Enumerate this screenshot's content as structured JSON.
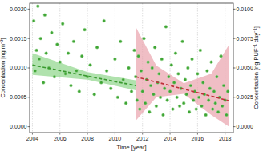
{
  "chart_data": {
    "type": "scatter",
    "xlabel": "Time [year]",
    "ylabel": "Concentration [ng m⁻³]",
    "y2label": "Concentration [ng PUF⁻¹ day⁻¹]",
    "xlim": [
      2003.8,
      2018.6
    ],
    "xticks": [
      2004,
      2006,
      2008,
      2010,
      2012,
      2014,
      2016,
      2018
    ],
    "ylim": [
      -0.0001,
      0.0021
    ],
    "yticks": [
      {
        "value": 0,
        "label": "0.0000"
      },
      {
        "value": 0.0005,
        "label": "0.0005"
      },
      {
        "value": 0.001,
        "label": "0.0010"
      },
      {
        "value": 0.0015,
        "label": "0.0015"
      },
      {
        "value": 0.002,
        "label": "0.0020"
      }
    ],
    "y2lim": [
      -0.0005,
      0.0105
    ],
    "y2ticks": [
      {
        "value": 0,
        "label": "0.0000"
      },
      {
        "value": 0.0025,
        "label": "0.0025"
      },
      {
        "value": 0.005,
        "label": "0.0050"
      },
      {
        "value": 0.0075,
        "label": "0.0075"
      },
      {
        "value": 0.01,
        "label": "0.0100"
      }
    ],
    "grid": true,
    "series": [
      {
        "type": "scatter",
        "color": "#3fa535",
        "marker": "circle",
        "x": [
          2004.1,
          2004.2,
          2004.3,
          2004.4,
          2004.5,
          2004.6,
          2004.8,
          2004.9,
          2005.0,
          2005.2,
          2005.4,
          2005.6,
          2005.8,
          2006.0,
          2006.2,
          2006.4,
          2006.6,
          2006.8,
          2007.0,
          2007.2,
          2007.4,
          2007.6,
          2007.8,
          2008.0,
          2008.2,
          2008.5,
          2008.7,
          2009.0,
          2009.2,
          2009.4,
          2009.7,
          2010.0,
          2010.2,
          2010.4,
          2010.6,
          2010.8,
          2011.0,
          2011.2,
          2011.4,
          2011.5,
          2011.6,
          2011.7,
          2011.8,
          2011.9,
          2012.0,
          2012.1,
          2012.2,
          2012.3,
          2012.4,
          2012.5,
          2012.6,
          2012.7,
          2012.8,
          2012.9,
          2013.0,
          2013.1,
          2013.2,
          2013.3,
          2013.4,
          2013.5,
          2013.6,
          2013.7,
          2013.8,
          2013.9,
          2014.0,
          2014.1,
          2014.2,
          2014.3,
          2014.4,
          2014.5,
          2014.6,
          2014.7,
          2014.8,
          2014.9,
          2015.0,
          2015.1,
          2015.2,
          2015.3,
          2015.4,
          2015.5,
          2015.6,
          2015.7,
          2015.8,
          2015.9,
          2016.0,
          2016.1,
          2016.2,
          2016.3,
          2016.4,
          2016.5,
          2016.6,
          2016.7,
          2016.8,
          2016.9,
          2017.0,
          2017.1,
          2017.2,
          2017.3,
          2017.4,
          2017.5,
          2017.6,
          2017.7,
          2017.8,
          2017.9,
          2018.0,
          2018.1,
          2018.2
        ],
        "values": [
          0.0018,
          0.00095,
          0.0013,
          0.00205,
          0.00115,
          0.0015,
          0.00075,
          0.0019,
          0.00125,
          0.001,
          0.0016,
          0.00085,
          0.0014,
          0.0011,
          0.00175,
          0.0009,
          0.00125,
          0.0007,
          0.00145,
          0.00095,
          0.0006,
          0.0012,
          0.00165,
          0.00085,
          0.00105,
          0.00055,
          0.00135,
          0.00075,
          0.0018,
          0.00095,
          0.00065,
          0.00115,
          0.0005,
          0.00145,
          0.0008,
          0.0004,
          0.001,
          0.0006,
          0.0013,
          0.00085,
          0.00045,
          0.0012,
          0.0003,
          0.00095,
          0.0006,
          0.0015,
          0.0004,
          0.0008,
          0.0011,
          0.00025,
          0.0007,
          0.001,
          0.00055,
          0.00135,
          0.00035,
          0.00075,
          0.0009,
          0.0005,
          0.00115,
          0.0002,
          0.00065,
          0.0017,
          0.00045,
          0.00085,
          0.0006,
          0.00105,
          0.0003,
          0.00075,
          0.00125,
          0.0005,
          0.0009,
          0.00035,
          0.00065,
          0.00145,
          0.0004,
          0.0008,
          0.00055,
          0.001,
          0.00025,
          0.0007,
          0.00115,
          0.00045,
          0.0006,
          0.0003,
          0.0009,
          0.0005,
          0.0013,
          0.00035,
          0.00075,
          0.00055,
          0.0002,
          0.00095,
          0.00045,
          0.00065,
          0.0011,
          0.0003,
          0.0006,
          0.0004,
          0.00085,
          0.00025,
          0.0005,
          0.0012,
          0.00035,
          0.0007,
          0.00045,
          0.0002,
          0.0006
        ]
      },
      {
        "type": "line",
        "color": "#3a9a30",
        "line_style": "dashed",
        "x": [
          2004,
          2008,
          2011.5
        ],
        "values": [
          0.00105,
          0.00086,
          0.0007
        ],
        "lower": [
          0.00088,
          0.0008,
          0.00062
        ],
        "upper": [
          0.00125,
          0.00093,
          0.00079
        ]
      },
      {
        "type": "line",
        "color": "#c0303a",
        "line_style": "dashed",
        "axis": "y2",
        "x": [
          2011.5,
          2013,
          2015,
          2017,
          2018.3
        ],
        "values": [
          0.00425,
          0.0038,
          0.0032,
          0.0026,
          0.0022
        ],
        "lower": [
          0.0005,
          0.0025,
          0.0028,
          0.001,
          0.0
        ],
        "upper": [
          0.0085,
          0.0052,
          0.0037,
          0.0045,
          0.007
        ]
      }
    ]
  }
}
